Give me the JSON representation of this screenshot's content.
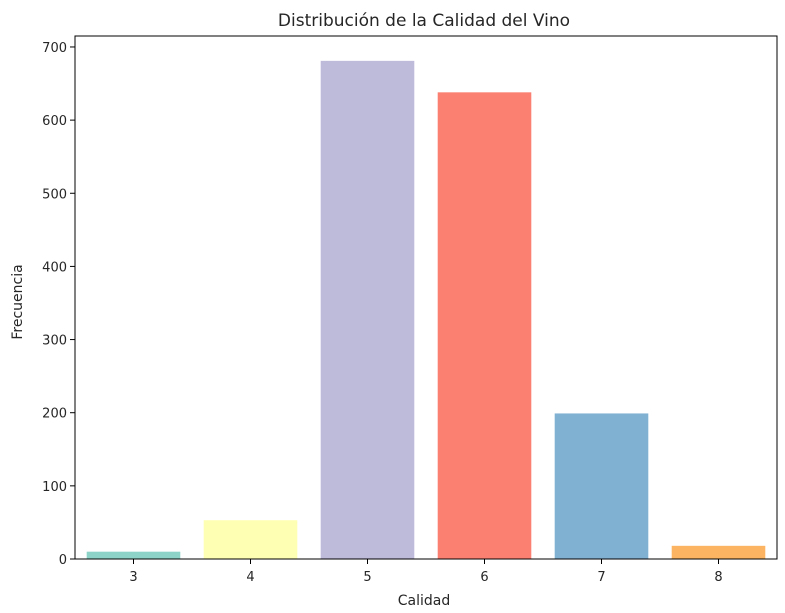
{
  "chart_data": {
    "type": "bar",
    "title": "Distribución de la Calidad del Vino",
    "xlabel": "Calidad",
    "ylabel": "Frecuencia",
    "categories": [
      "3",
      "4",
      "5",
      "6",
      "7",
      "8"
    ],
    "values": [
      10,
      53,
      681,
      638,
      199,
      18
    ],
    "colors": [
      "#8dd3c7",
      "#ffffb3",
      "#bebada",
      "#fb8072",
      "#80b1d3",
      "#fdb462"
    ],
    "ylim": [
      0,
      715
    ],
    "yticks": [
      0,
      100,
      200,
      300,
      400,
      500,
      600,
      700
    ],
    "grid": false,
    "legend": "none"
  }
}
